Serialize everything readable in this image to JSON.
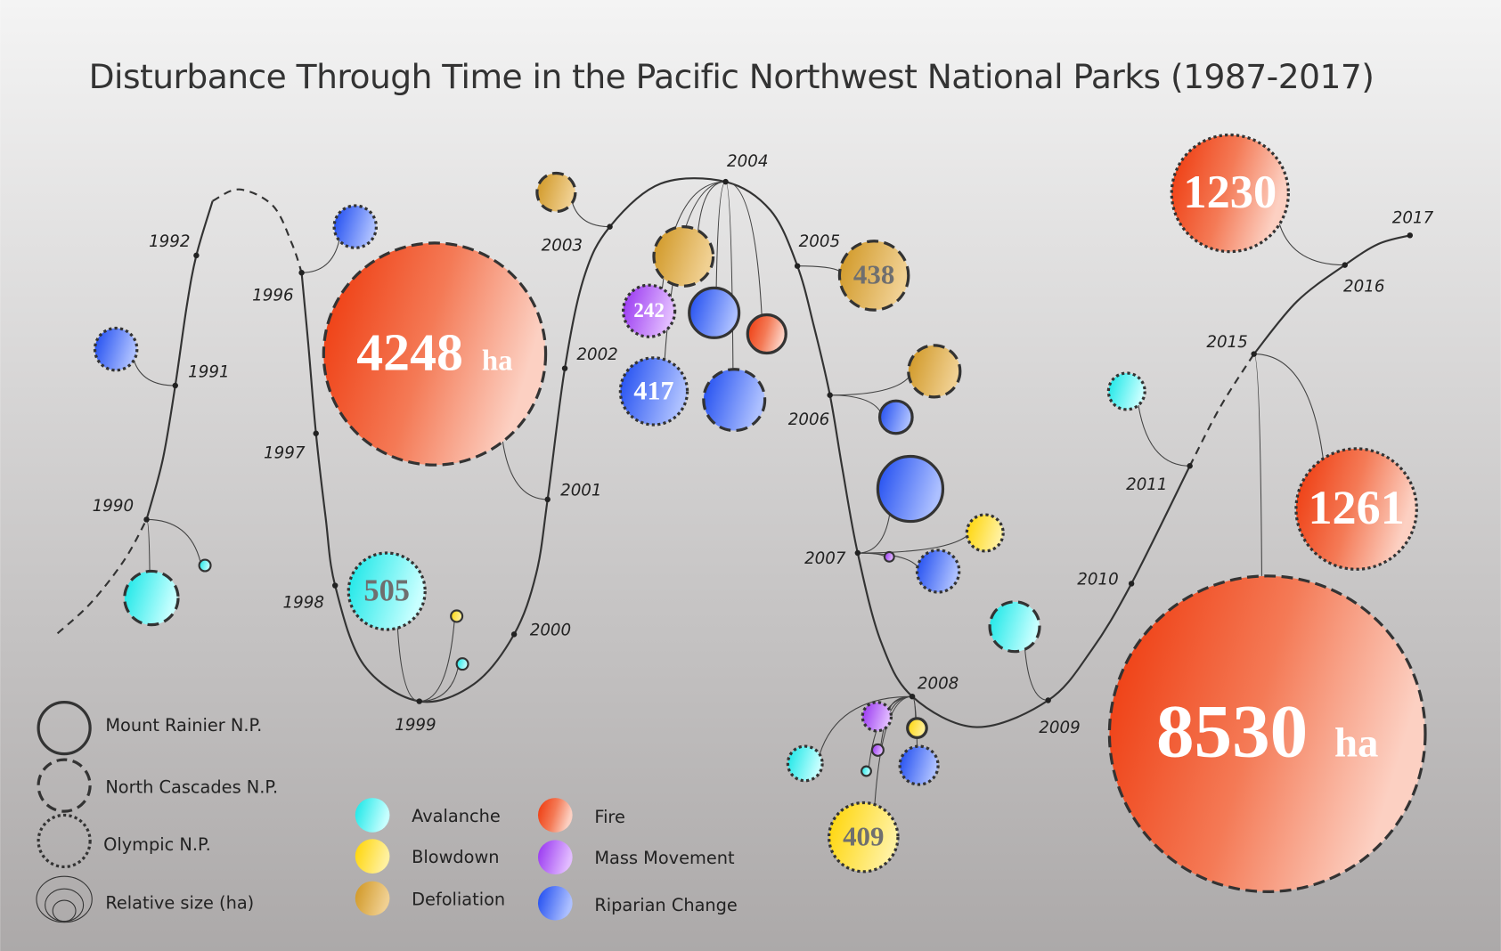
{
  "title": "Disturbance Through Time in the Pacific Northwest National Parks (1987-2017)",
  "years": [
    "1990",
    "1991",
    "1992",
    "1996",
    "1997",
    "1998",
    "1999",
    "2000",
    "2001",
    "2002",
    "2003",
    "2004",
    "2005",
    "2006",
    "2007",
    "2008",
    "2009",
    "2010",
    "2011",
    "2015",
    "2016",
    "2017"
  ],
  "bubble_labels": [
    {
      "value": "4248",
      "unit": "ha"
    },
    {
      "value": "505"
    },
    {
      "value": "242"
    },
    {
      "value": "417"
    },
    {
      "value": "438"
    },
    {
      "value": "409"
    },
    {
      "value": "1230"
    },
    {
      "value": "1261"
    },
    {
      "value": "8530",
      "unit": "ha"
    }
  ],
  "legend": {
    "parks": [
      "Mount Rainier N.P.",
      "North Cascades N.P.",
      "Olympic N.P.",
      "Relative size (ha)"
    ],
    "types": [
      "Avalanche",
      "Blowdown",
      "Defoliation",
      "Fire",
      "Mass Movement",
      "Riparian Change"
    ]
  }
}
